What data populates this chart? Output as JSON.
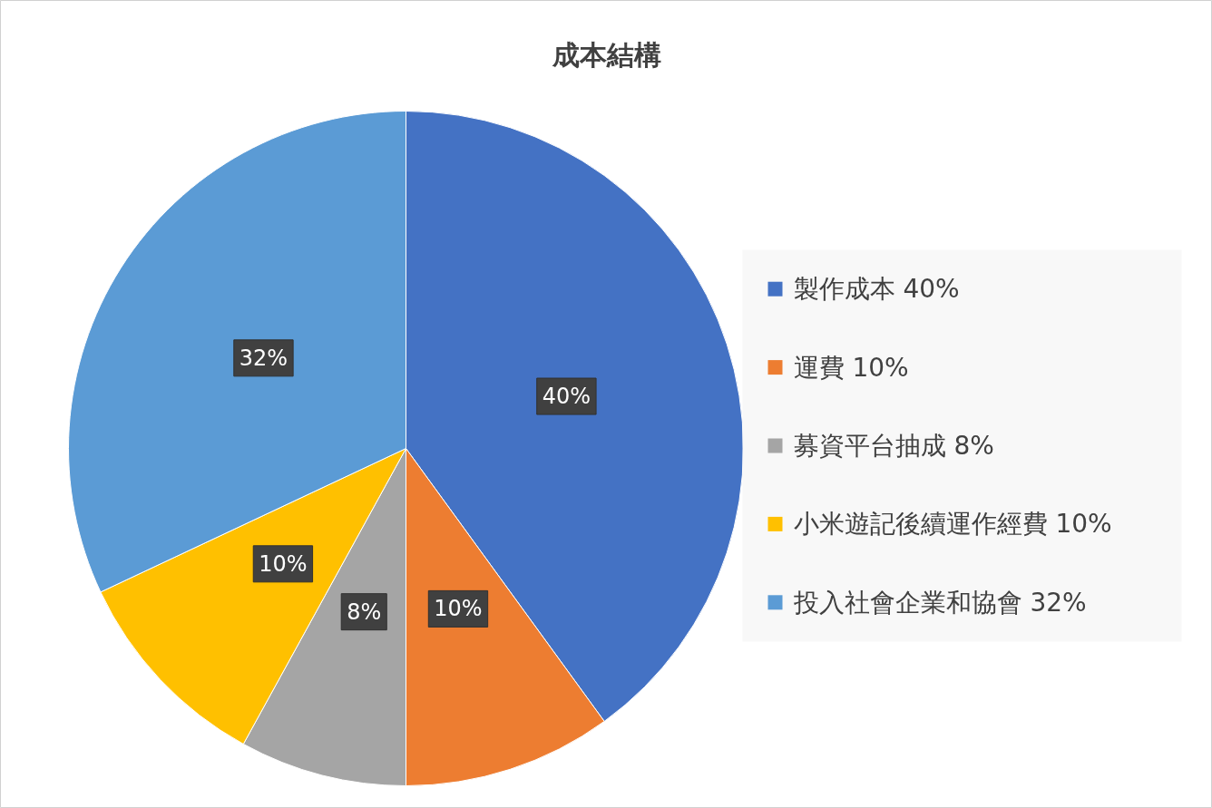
{
  "chart_data": {
    "type": "pie",
    "title": "成本結構",
    "categories": [
      "製作成本 40%",
      "運費 10%",
      "募資平台抽成 8%",
      "小米遊記後續運作經費 10%",
      "投入社會企業和協會 32%"
    ],
    "values": [
      40,
      10,
      8,
      10,
      32
    ],
    "colors": [
      "#4472c4",
      "#ed7d31",
      "#a5a5a5",
      "#ffc000",
      "#5b9bd5"
    ],
    "value_labels": [
      "40%",
      "10%",
      "8%",
      "10%",
      "32%"
    ],
    "legend": "right"
  }
}
